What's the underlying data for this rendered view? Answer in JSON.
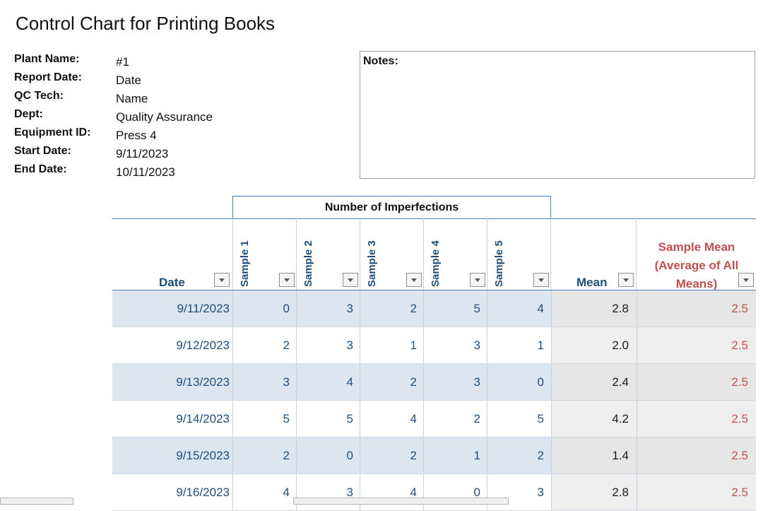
{
  "title": "Control Chart for Printing Books",
  "info": [
    {
      "label": "Plant Name:",
      "value": "#1"
    },
    {
      "label": "Report Date:",
      "value": "Date"
    },
    {
      "label": "QC Tech:",
      "value": "Name"
    },
    {
      "label": "Dept:",
      "value": "Quality Assurance"
    },
    {
      "label": "Equipment ID:",
      "value": "Press 4"
    },
    {
      "label": "Start Date:",
      "value": "9/11/2023"
    },
    {
      "label": "End Date:",
      "value": "10/11/2023"
    }
  ],
  "notes": {
    "label": "Notes:"
  },
  "table": {
    "group_header": "Number of Imperfections",
    "headers": {
      "date": "Date",
      "samples": [
        "Sample 1",
        "Sample 2",
        "Sample 3",
        "Sample 4",
        "Sample 5"
      ],
      "mean": "Mean",
      "sample_mean_lines": [
        "Sample Mean",
        "(Average of All",
        "Means)"
      ]
    },
    "rows": [
      {
        "date": "9/11/2023",
        "samples": [
          "0",
          "3",
          "2",
          "5",
          "4"
        ],
        "mean": "2.8",
        "sample_mean": "2.5"
      },
      {
        "date": "9/12/2023",
        "samples": [
          "2",
          "3",
          "1",
          "3",
          "1"
        ],
        "mean": "2.0",
        "sample_mean": "2.5"
      },
      {
        "date": "9/13/2023",
        "samples": [
          "3",
          "4",
          "2",
          "3",
          "0"
        ],
        "mean": "2.4",
        "sample_mean": "2.5"
      },
      {
        "date": "9/14/2023",
        "samples": [
          "5",
          "5",
          "4",
          "2",
          "5"
        ],
        "mean": "4.2",
        "sample_mean": "2.5"
      },
      {
        "date": "9/15/2023",
        "samples": [
          "2",
          "0",
          "2",
          "1",
          "2"
        ],
        "mean": "1.4",
        "sample_mean": "2.5"
      },
      {
        "date": "9/16/2023",
        "samples": [
          "4",
          "3",
          "4",
          "0",
          "3"
        ],
        "mean": "2.8",
        "sample_mean": "2.5"
      }
    ]
  },
  "colors": {
    "header_blue": "#1f4e79",
    "red": "#c0504d",
    "band": "#dce6f1",
    "border_blue": "#4f81bd"
  }
}
